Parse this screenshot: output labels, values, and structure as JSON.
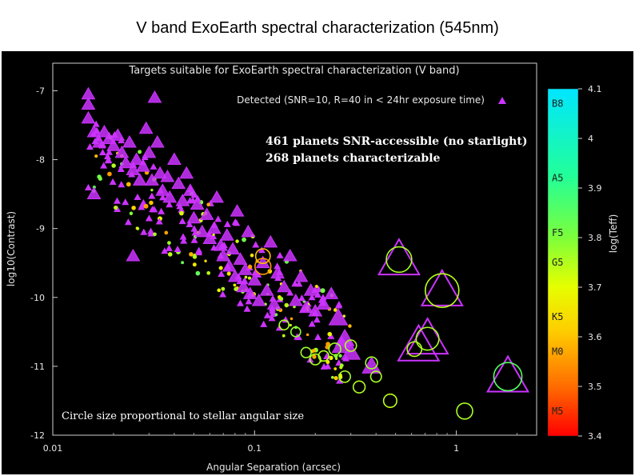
{
  "page": {
    "title": "V band ExoEarth spectral characterization (545nm)"
  },
  "chart_data": {
    "type": "scatter",
    "title": "Targets suitable for ExoEarth spectral characterization (V band)",
    "xlabel": "Angular Separation (arcsec)",
    "ylabel": "log10(Contrast)",
    "xscale": "log",
    "xlim": [
      0.01,
      2.5
    ],
    "ylim": [
      -12,
      -6.6
    ],
    "xticks": [
      {
        "v": 0.01,
        "label": "0.01"
      },
      {
        "v": 0.1,
        "label": "0.1"
      },
      {
        "v": 1,
        "label": "1"
      }
    ],
    "yticks": [
      {
        "v": -7,
        "label": "-7"
      },
      {
        "v": -8,
        "label": "-8"
      },
      {
        "v": -9,
        "label": "-9"
      },
      {
        "v": -10,
        "label": "-10"
      },
      {
        "v": -11,
        "label": "-11"
      },
      {
        "v": -12,
        "label": "-12"
      }
    ],
    "legend": {
      "label": "Detected (SNR=10, R=40 in < 24hr exposure time)",
      "placement": "top-right",
      "color": "#cc33ff"
    },
    "annotations": [
      "461  planets SNR-accessible (no starlight)",
      "268 planets characterizable",
      "Circle size proportional to stellar angular size"
    ],
    "colorbar": {
      "label": "log(Teff)",
      "range": [
        3.4,
        4.1
      ],
      "ticks": [
        {
          "v": 4.1,
          "label": "4.1"
        },
        {
          "v": 4.0,
          "label": "4"
        },
        {
          "v": 3.9,
          "label": "3.9"
        },
        {
          "v": 3.8,
          "label": "3.8"
        },
        {
          "v": 3.7,
          "label": "3.7"
        },
        {
          "v": 3.6,
          "label": "3.6"
        },
        {
          "v": 3.5,
          "label": "3.5"
        },
        {
          "v": 3.4,
          "label": "3.4"
        }
      ],
      "spectral_types": [
        {
          "t": "B8",
          "v": 4.07
        },
        {
          "t": "A5",
          "v": 3.92
        },
        {
          "t": "F5",
          "v": 3.81
        },
        {
          "t": "G5",
          "v": 3.75
        },
        {
          "t": "K5",
          "v": 3.64
        },
        {
          "t": "M0",
          "v": 3.57
        },
        {
          "t": "M5",
          "v": 3.45
        }
      ]
    },
    "series": [
      {
        "marker": "triangle",
        "color": "#cc33ff",
        "points": [
          {
            "x": 0.015,
            "y": -7.05
          },
          {
            "x": 0.015,
            "y": -7.2
          },
          {
            "x": 0.015,
            "y": -7.4
          },
          {
            "x": 0.016,
            "y": -7.6
          },
          {
            "x": 0.017,
            "y": -7.75
          },
          {
            "x": 0.018,
            "y": -7.6
          },
          {
            "x": 0.019,
            "y": -7.7
          },
          {
            "x": 0.02,
            "y": -7.8
          },
          {
            "x": 0.021,
            "y": -7.65
          },
          {
            "x": 0.022,
            "y": -7.9
          },
          {
            "x": 0.023,
            "y": -8.05
          },
          {
            "x": 0.024,
            "y": -7.75
          },
          {
            "x": 0.025,
            "y": -8.15
          },
          {
            "x": 0.026,
            "y": -8.0
          },
          {
            "x": 0.027,
            "y": -8.3
          },
          {
            "x": 0.028,
            "y": -8.1
          },
          {
            "x": 0.029,
            "y": -7.55
          },
          {
            "x": 0.03,
            "y": -7.9
          },
          {
            "x": 0.031,
            "y": -8.3
          },
          {
            "x": 0.032,
            "y": -7.1
          },
          {
            "x": 0.033,
            "y": -7.75
          },
          {
            "x": 0.034,
            "y": -8.2
          },
          {
            "x": 0.035,
            "y": -8.45
          },
          {
            "x": 0.037,
            "y": -8.25
          },
          {
            "x": 0.038,
            "y": -8.55
          },
          {
            "x": 0.04,
            "y": -8.0
          },
          {
            "x": 0.042,
            "y": -8.35
          },
          {
            "x": 0.044,
            "y": -8.6
          },
          {
            "x": 0.046,
            "y": -8.2
          },
          {
            "x": 0.048,
            "y": -8.45
          },
          {
            "x": 0.05,
            "y": -8.85
          },
          {
            "x": 0.052,
            "y": -8.65
          },
          {
            "x": 0.055,
            "y": -9.05
          },
          {
            "x": 0.058,
            "y": -8.8
          },
          {
            "x": 0.06,
            "y": -9.15
          },
          {
            "x": 0.063,
            "y": -9.0
          },
          {
            "x": 0.065,
            "y": -8.55
          },
          {
            "x": 0.068,
            "y": -9.25
          },
          {
            "x": 0.07,
            "y": -9.4
          },
          {
            "x": 0.073,
            "y": -9.1
          },
          {
            "x": 0.075,
            "y": -9.55
          },
          {
            "x": 0.078,
            "y": -9.3
          },
          {
            "x": 0.08,
            "y": -9.7
          },
          {
            "x": 0.082,
            "y": -8.75
          },
          {
            "x": 0.085,
            "y": -9.45
          },
          {
            "x": 0.088,
            "y": -9.85
          },
          {
            "x": 0.09,
            "y": -9.6
          },
          {
            "x": 0.093,
            "y": -9.05
          },
          {
            "x": 0.095,
            "y": -9.95
          },
          {
            "x": 0.1,
            "y": -9.75
          },
          {
            "x": 0.105,
            "y": -10.05
          },
          {
            "x": 0.11,
            "y": -9.5
          },
          {
            "x": 0.115,
            "y": -9.9
          },
          {
            "x": 0.12,
            "y": -9.2
          },
          {
            "x": 0.125,
            "y": -10.1
          },
          {
            "x": 0.13,
            "y": -9.65
          },
          {
            "x": 0.14,
            "y": -9.85
          },
          {
            "x": 0.15,
            "y": -9.4
          },
          {
            "x": 0.16,
            "y": -10.05
          },
          {
            "x": 0.17,
            "y": -9.7
          },
          {
            "x": 0.18,
            "y": -10.15
          },
          {
            "x": 0.19,
            "y": -9.9
          },
          {
            "x": 0.2,
            "y": -10.2
          },
          {
            "x": 0.22,
            "y": -10.1
          },
          {
            "x": 0.24,
            "y": -9.95
          },
          {
            "x": 0.26,
            "y": -10.3
          },
          {
            "x": 0.28,
            "y": -10.6
          },
          {
            "x": 0.27,
            "y": -10.7
          },
          {
            "x": 0.3,
            "y": -10.8
          },
          {
            "x": 0.38,
            "y": -11.0
          },
          {
            "x": 0.52,
            "y": -9.45
          },
          {
            "x": 0.65,
            "y": -10.7
          },
          {
            "x": 0.72,
            "y": -10.6
          },
          {
            "x": 0.85,
            "y": -9.9
          },
          {
            "x": 1.8,
            "y": -11.15
          },
          {
            "x": 0.025,
            "y": -9.4
          },
          {
            "x": 0.016,
            "y": -8.5
          }
        ]
      },
      {
        "marker": "circle",
        "points": [
          {
            "x": 0.52,
            "y": -9.45,
            "r": 0.7,
            "t": 3.76
          },
          {
            "x": 0.85,
            "y": -9.9,
            "r": 1.0,
            "t": 3.74
          },
          {
            "x": 0.72,
            "y": -10.6,
            "r": 0.6,
            "t": 3.76
          },
          {
            "x": 1.8,
            "y": -11.15,
            "r": 0.8,
            "t": 3.85
          },
          {
            "x": 1.1,
            "y": -11.65,
            "r": 0.35,
            "t": 3.76
          },
          {
            "x": 0.47,
            "y": -11.5,
            "r": 0.25,
            "t": 3.74
          },
          {
            "x": 0.62,
            "y": -10.75,
            "r": 0.3,
            "t": 3.75
          },
          {
            "x": 0.38,
            "y": -10.95,
            "r": 0.2,
            "t": 3.77
          },
          {
            "x": 0.33,
            "y": -11.3,
            "r": 0.2,
            "t": 3.75
          },
          {
            "x": 0.28,
            "y": -11.15,
            "r": 0.18,
            "t": 3.76
          },
          {
            "x": 0.25,
            "y": -10.75,
            "r": 0.2,
            "t": 3.77
          },
          {
            "x": 0.3,
            "y": -10.7,
            "r": 0.18,
            "t": 3.75
          },
          {
            "x": 0.2,
            "y": -10.9,
            "r": 0.16,
            "t": 3.76
          },
          {
            "x": 0.18,
            "y": -10.8,
            "r": 0.14,
            "t": 3.77
          },
          {
            "x": 0.22,
            "y": -10.85,
            "r": 0.14,
            "t": 3.75
          },
          {
            "x": 0.11,
            "y": -9.55,
            "r": 0.35,
            "t": 3.55
          },
          {
            "x": 0.11,
            "y": -9.4,
            "r": 0.3,
            "t": 3.6
          },
          {
            "x": 0.16,
            "y": -10.5,
            "r": 0.12,
            "t": 3.78
          },
          {
            "x": 0.14,
            "y": -10.4,
            "r": 0.12,
            "t": 3.76
          },
          {
            "x": 0.4,
            "y": -11.15,
            "r": 0.16,
            "t": 3.76
          }
        ]
      }
    ],
    "cloud": {
      "description_count": 260,
      "x_range": [
        0.015,
        0.3
      ],
      "trend": "contrast decreases with separation"
    }
  }
}
